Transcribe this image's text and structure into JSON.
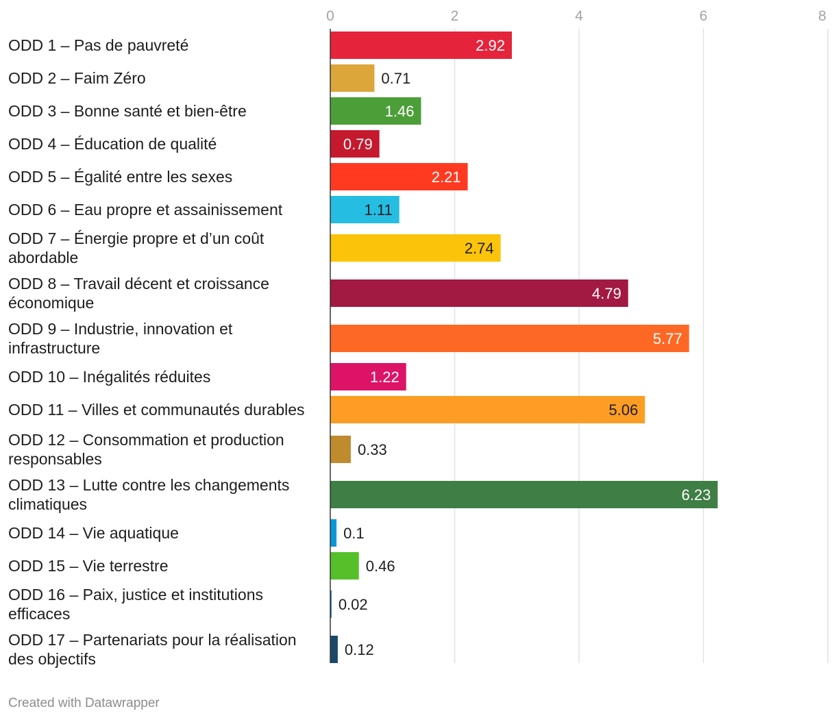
{
  "chart_data": {
    "type": "bar",
    "orientation": "horizontal",
    "x_ticks": [
      0,
      2,
      4,
      6,
      8
    ],
    "xlim": [
      0,
      8
    ],
    "grid": true,
    "categories": [
      [
        "ODD 1 – Pas de pauvreté"
      ],
      [
        "ODD 2 – Faim Zéro"
      ],
      [
        "ODD 3 – Bonne santé et bien-être"
      ],
      [
        "ODD 4 – Éducation de qualité"
      ],
      [
        "ODD 5 – Égalité entre les sexes"
      ],
      [
        "ODD 6 – Eau propre et assainissement"
      ],
      [
        "ODD 7 – Énergie propre et d’un coût",
        "abordable"
      ],
      [
        "ODD 8 – Travail décent et croissance",
        "économique"
      ],
      [
        "ODD 9 – Industrie, innovation et",
        "infrastructure"
      ],
      [
        "ODD 10 – Inégalités réduites"
      ],
      [
        "ODD 11 – Villes et communautés durables"
      ],
      [
        "ODD 12 – Consommation et production",
        "responsables"
      ],
      [
        "ODD 13 – Lutte contre les changements",
        "climatiques"
      ],
      [
        "ODD 14 – Vie aquatique"
      ],
      [
        "ODD 15 – Vie terrestre"
      ],
      [
        "ODD 16 – Paix, justice et institutions",
        "efficaces"
      ],
      [
        "ODD 17 – Partenariats pour la réalisation",
        "des objectifs"
      ]
    ],
    "values": [
      2.92,
      0.71,
      1.46,
      0.79,
      2.21,
      1.11,
      2.74,
      4.79,
      5.77,
      1.22,
      5.06,
      0.33,
      6.23,
      0.1,
      0.46,
      0.02,
      0.12
    ],
    "value_labels": [
      "2.92",
      "0.71",
      "1.46",
      "0.79",
      "2.21",
      "1.11",
      "2.74",
      "4.79",
      "5.77",
      "1.22",
      "5.06",
      "0.33",
      "6.23",
      "0.1",
      "0.46",
      "0.02",
      "0.12"
    ],
    "colors": [
      "#e5243b",
      "#dda63a",
      "#4c9f38",
      "#c5192d",
      "#ff3a21",
      "#26bde2",
      "#fcc30b",
      "#a21942",
      "#fd6925",
      "#dd1367",
      "#fd9d24",
      "#bf8b2e",
      "#3f7e44",
      "#0a97d9",
      "#56c02b",
      "#00689d",
      "#19486a"
    ],
    "label_colors": [
      "#ffffff",
      "#1d1d1d",
      "#ffffff",
      "#ffffff",
      "#ffffff",
      "#1d1d1d",
      "#1d1d1d",
      "#ffffff",
      "#ffffff",
      "#ffffff",
      "#1d1d1d",
      "#1d1d1d",
      "#ffffff",
      "#1d1d1d",
      "#1d1d1d",
      "#1d1d1d",
      "#1d1d1d"
    ]
  },
  "footer": {
    "credit": "Created with Datawrapper"
  }
}
